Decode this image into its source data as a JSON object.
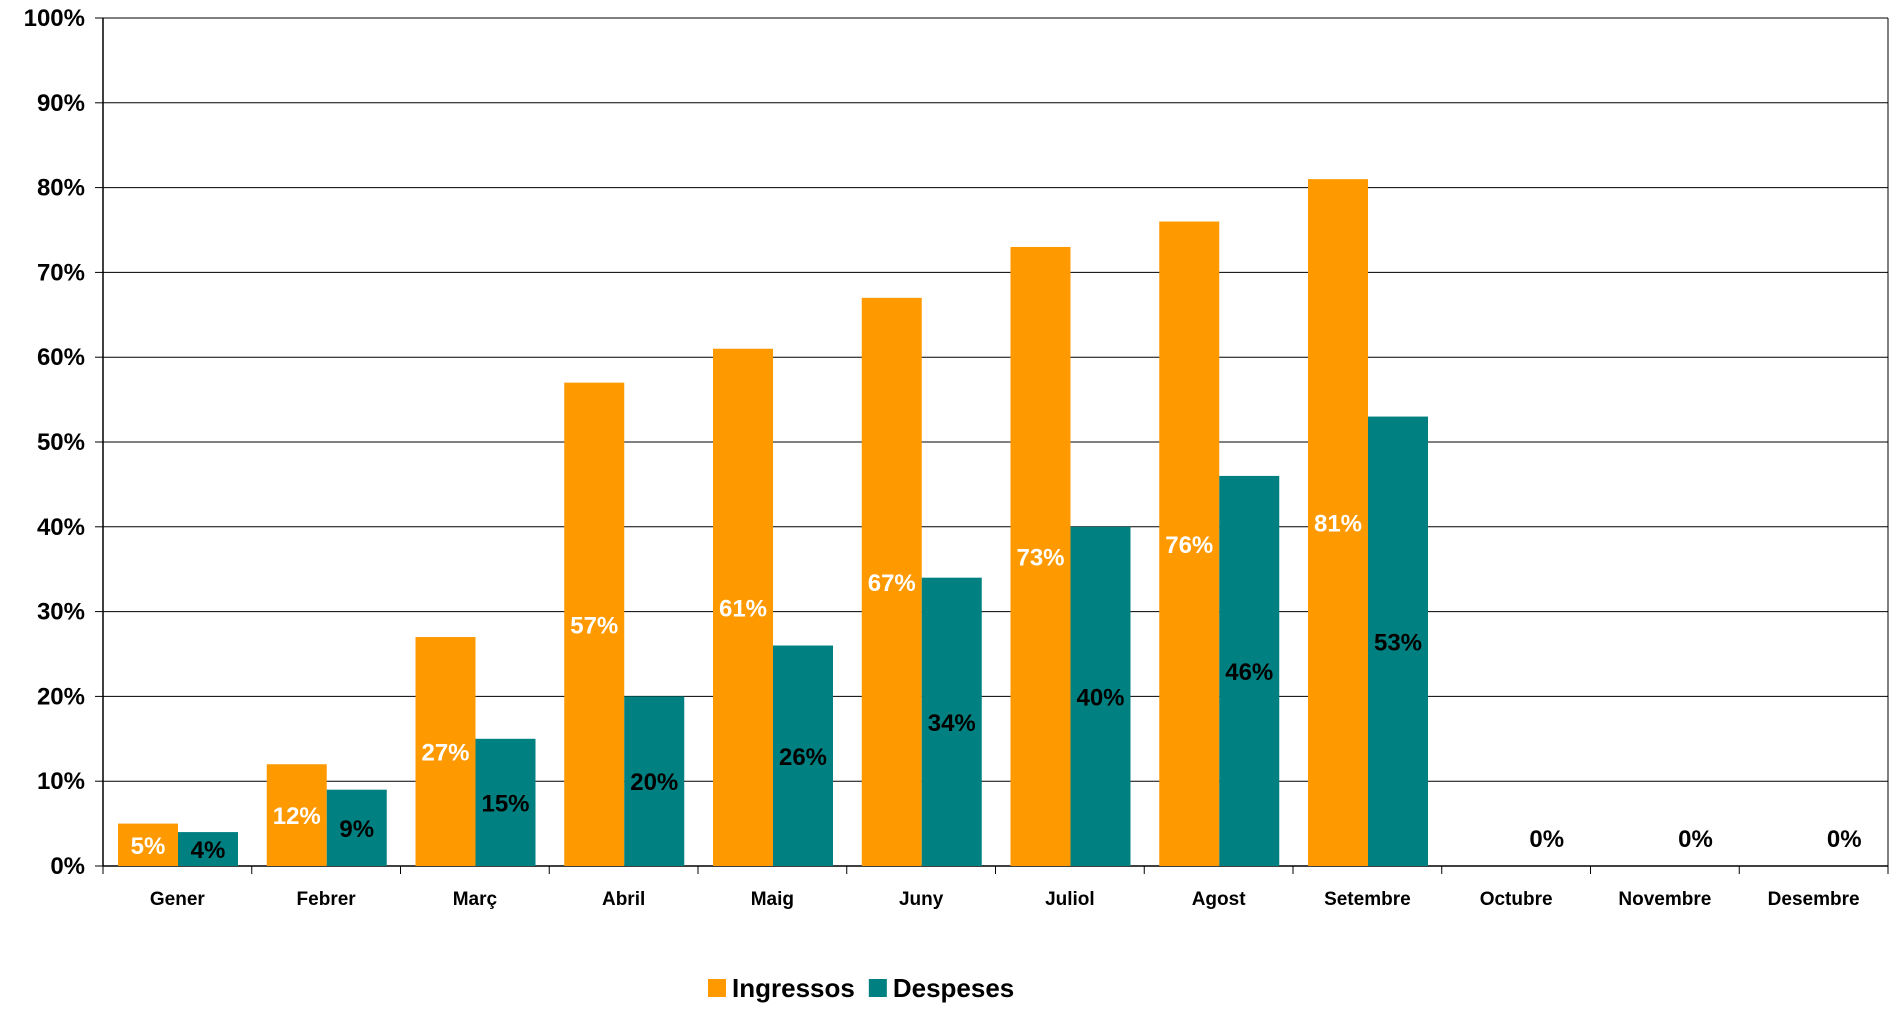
{
  "chart_data": {
    "type": "bar",
    "categories": [
      "Gener",
      "Febrer",
      "Març",
      "Abril",
      "Maig",
      "Juny",
      "Juliol",
      "Agost",
      "Setembre",
      "Octubre",
      "Novembre",
      "Desembre"
    ],
    "series": [
      {
        "name": "Ingressos",
        "color": "#FF9900",
        "label_color": "#FFFFFF",
        "values": [
          5,
          12,
          27,
          57,
          61,
          67,
          73,
          76,
          81,
          null,
          null,
          null
        ],
        "labels": [
          "5%",
          "12%",
          "27%",
          "57%",
          "61%",
          "67%",
          "73%",
          "76%",
          "81%",
          "",
          "",
          ""
        ]
      },
      {
        "name": "Despeses",
        "color": "#008080",
        "label_color": "#000000",
        "values": [
          4,
          9,
          15,
          20,
          26,
          34,
          40,
          46,
          53,
          0,
          0,
          0
        ],
        "labels": [
          "4%",
          "9%",
          "15%",
          "20%",
          "26%",
          "34%",
          "40%",
          "46%",
          "53%",
          "0%",
          "0%",
          "0%"
        ]
      }
    ],
    "ylim": [
      0,
      100
    ],
    "yticks": [
      "0%",
      "10%",
      "20%",
      "30%",
      "40%",
      "50%",
      "60%",
      "70%",
      "80%",
      "90%",
      "100%"
    ],
    "title": "",
    "xlabel": "",
    "ylabel": "",
    "grid": true,
    "legend_position": "bottom"
  }
}
